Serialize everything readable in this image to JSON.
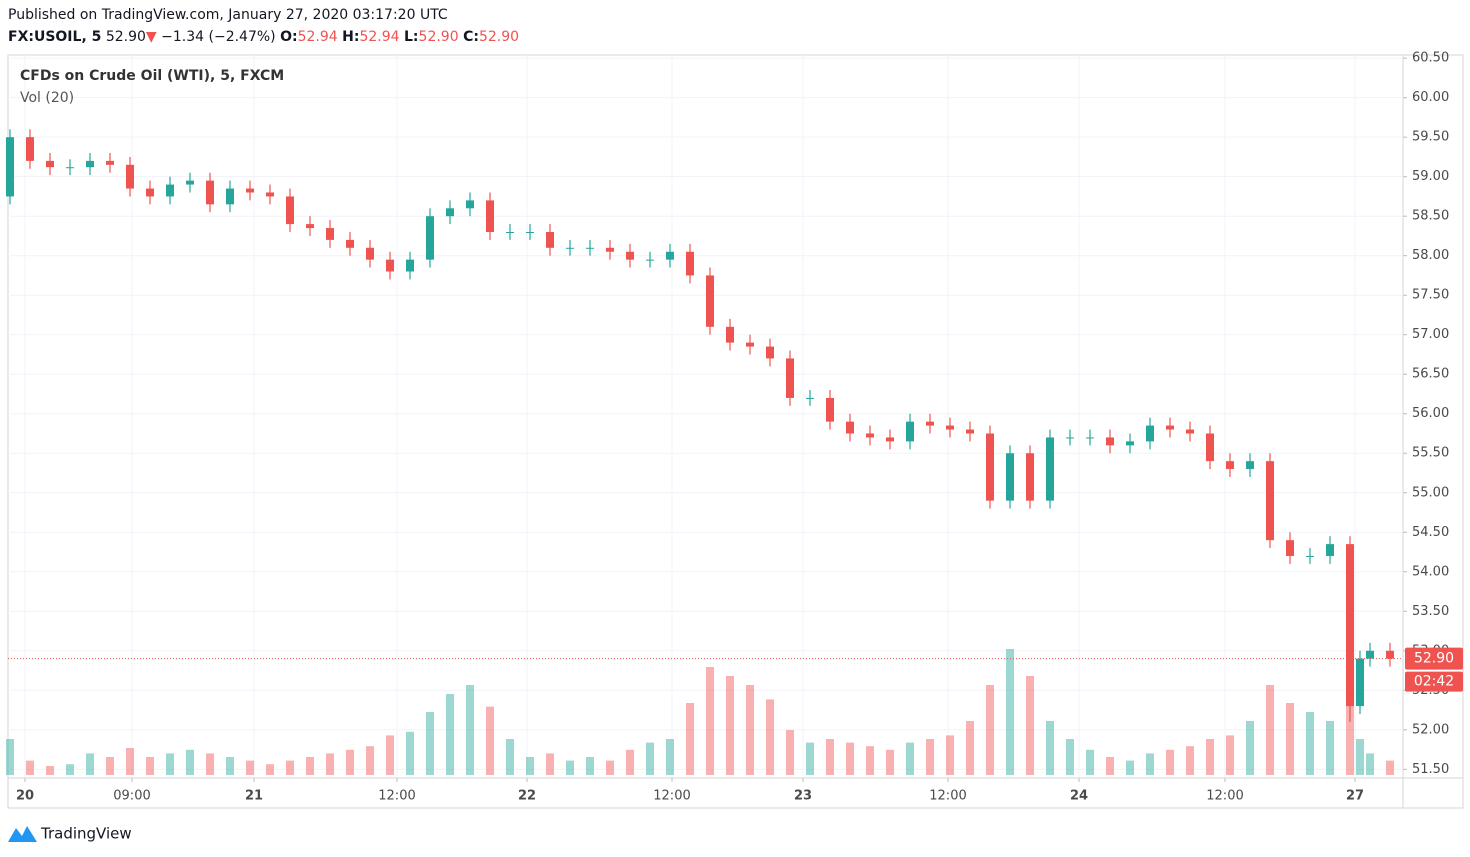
{
  "header": {
    "published": "Published on TradingView.com, January 27, 2020 03:17:20 UTC",
    "symbol": "FX:USOIL, 5",
    "last": "52.90",
    "arrow": "▼",
    "change": "−1.34 (−2.47%)",
    "o_label": "O:",
    "o": "52.94",
    "h_label": "H:",
    "h": "52.94",
    "l_label": "L:",
    "l": "52.90",
    "c_label": "C:",
    "c": "52.90"
  },
  "footer": {
    "brand": "TradingView"
  },
  "chart_data": {
    "type": "candlestick",
    "title": "CFDs on Crude Oil (WTI), 5, FXCM",
    "subtitle": "Vol (20)",
    "up_color": "#26a69a",
    "down_color": "#ef5350",
    "grid": true,
    "x": [
      2,
      22,
      42,
      62,
      82,
      102,
      122,
      142,
      162,
      182,
      202,
      222,
      242,
      262,
      282,
      302,
      322,
      342,
      362,
      382,
      402,
      422,
      442,
      462,
      482,
      502,
      522,
      542,
      562,
      582,
      602,
      622,
      642,
      662,
      682,
      702,
      722,
      742,
      762,
      782,
      802,
      822,
      842,
      862,
      882,
      902,
      922,
      942,
      962,
      982,
      1002,
      1022,
      1042,
      1062,
      1082,
      1102,
      1122,
      1142,
      1162,
      1182,
      1202,
      1222,
      1242,
      1262,
      1282,
      1302,
      1322,
      1342,
      1352,
      1362,
      1382
    ],
    "open": [
      58.75,
      59.5,
      59.2,
      59.12,
      59.12,
      59.2,
      59.15,
      58.85,
      58.75,
      58.9,
      58.95,
      58.65,
      58.85,
      58.8,
      58.75,
      58.4,
      58.35,
      58.2,
      58.1,
      57.95,
      57.8,
      57.95,
      58.5,
      58.6,
      58.7,
      58.3,
      58.3,
      58.3,
      58.1,
      58.1,
      58.1,
      58.05,
      57.95,
      57.95,
      58.05,
      57.75,
      57.1,
      56.9,
      56.85,
      56.7,
      56.2,
      56.2,
      55.9,
      55.75,
      55.7,
      55.65,
      55.9,
      55.85,
      55.8,
      55.75,
      54.9,
      55.5,
      54.9,
      55.7,
      55.7,
      55.7,
      55.6,
      55.65,
      55.85,
      55.8,
      55.75,
      55.4,
      55.3,
      55.4,
      54.4,
      54.2,
      54.2,
      54.35,
      52.3,
      52.9,
      53.0
    ],
    "high": [
      59.6,
      59.6,
      59.3,
      59.22,
      59.3,
      59.3,
      59.25,
      58.95,
      59.0,
      59.05,
      59.05,
      58.95,
      58.95,
      58.9,
      58.85,
      58.5,
      58.45,
      58.3,
      58.2,
      58.05,
      58.05,
      58.6,
      58.7,
      58.8,
      58.8,
      58.4,
      58.4,
      58.4,
      58.2,
      58.2,
      58.2,
      58.15,
      58.05,
      58.15,
      58.15,
      57.85,
      57.2,
      57.0,
      56.95,
      56.8,
      56.3,
      56.3,
      56.0,
      55.85,
      55.8,
      56.0,
      56.0,
      55.95,
      55.9,
      55.85,
      55.6,
      55.6,
      55.8,
      55.8,
      55.8,
      55.8,
      55.75,
      55.95,
      55.95,
      55.9,
      55.85,
      55.5,
      55.5,
      55.5,
      54.5,
      54.3,
      54.45,
      54.45,
      53.0,
      53.1,
      53.1
    ],
    "low": [
      58.65,
      59.1,
      59.02,
      59.02,
      59.02,
      59.05,
      58.75,
      58.65,
      58.65,
      58.8,
      58.55,
      58.55,
      58.7,
      58.65,
      58.3,
      58.25,
      58.1,
      58.0,
      57.85,
      57.7,
      57.7,
      57.85,
      58.4,
      58.5,
      58.2,
      58.2,
      58.2,
      58.0,
      58.0,
      58.0,
      57.95,
      57.85,
      57.85,
      57.85,
      57.65,
      57.0,
      56.8,
      56.75,
      56.6,
      56.1,
      56.1,
      55.8,
      55.65,
      55.6,
      55.55,
      55.55,
      55.75,
      55.7,
      55.65,
      54.8,
      54.8,
      54.8,
      54.8,
      55.6,
      55.6,
      55.5,
      55.5,
      55.55,
      55.7,
      55.65,
      55.3,
      55.2,
      55.2,
      54.3,
      54.1,
      54.1,
      54.1,
      52.1,
      52.2,
      52.8,
      52.8
    ],
    "close": [
      59.5,
      59.2,
      59.12,
      59.12,
      59.2,
      59.15,
      58.85,
      58.75,
      58.9,
      58.95,
      58.65,
      58.85,
      58.8,
      58.75,
      58.4,
      58.35,
      58.2,
      58.1,
      57.95,
      57.8,
      57.95,
      58.5,
      58.6,
      58.7,
      58.3,
      58.3,
      58.3,
      58.1,
      58.1,
      58.1,
      58.05,
      57.95,
      57.95,
      58.05,
      57.75,
      57.1,
      56.9,
      56.85,
      56.7,
      56.2,
      56.2,
      55.9,
      55.75,
      55.7,
      55.65,
      55.9,
      55.85,
      55.8,
      55.75,
      54.9,
      55.5,
      54.9,
      55.7,
      55.7,
      55.7,
      55.6,
      55.65,
      55.85,
      55.8,
      55.75,
      55.4,
      55.3,
      55.4,
      54.4,
      54.2,
      54.2,
      54.35,
      52.3,
      52.9,
      53.0,
      52.9
    ],
    "volume": [
      20,
      8,
      5,
      6,
      12,
      10,
      15,
      10,
      12,
      14,
      12,
      10,
      8,
      6,
      8,
      10,
      12,
      14,
      16,
      22,
      24,
      35,
      45,
      50,
      38,
      20,
      10,
      12,
      8,
      10,
      8,
      14,
      18,
      20,
      40,
      60,
      55,
      50,
      42,
      25,
      18,
      20,
      18,
      16,
      14,
      18,
      20,
      22,
      30,
      50,
      70,
      55,
      30,
      20,
      14,
      10,
      8,
      12,
      14,
      16,
      20,
      22,
      30,
      50,
      40,
      35,
      30,
      55,
      20,
      12,
      8
    ],
    "vol_max": 100,
    "xlim": [
      0,
      1395
    ],
    "xticks": [
      {
        "value": 17,
        "label": "20"
      },
      {
        "value": 124,
        "label": "09:00"
      },
      {
        "value": 246,
        "label": "21"
      },
      {
        "value": 389,
        "label": "12:00"
      },
      {
        "value": 519,
        "label": "22"
      },
      {
        "value": 664,
        "label": "12:00"
      },
      {
        "value": 795,
        "label": "23"
      },
      {
        "value": 940,
        "label": "12:00"
      },
      {
        "value": 1071,
        "label": "24"
      },
      {
        "value": 1217,
        "label": "12:00"
      },
      {
        "value": 1347,
        "label": "27"
      }
    ],
    "ylim": [
      51.39,
      60.54
    ],
    "yticks": [
      {
        "value": 51.5,
        "label": "51.50"
      },
      {
        "value": 52,
        "label": "52.00"
      },
      {
        "value": 52.5,
        "label": "52.50"
      },
      {
        "value": 53,
        "label": "53.00"
      },
      {
        "value": 53.5,
        "label": "53.50"
      },
      {
        "value": 54,
        "label": "54.00"
      },
      {
        "value": 54.5,
        "label": "54.50"
      },
      {
        "value": 55,
        "label": "55.00"
      },
      {
        "value": 55.5,
        "label": "55.50"
      },
      {
        "value": 56,
        "label": "56.00"
      },
      {
        "value": 56.5,
        "label": "56.50"
      },
      {
        "value": 57,
        "label": "57.00"
      },
      {
        "value": 57.5,
        "label": "57.50"
      },
      {
        "value": 58,
        "label": "58.00"
      },
      {
        "value": 58.5,
        "label": "58.50"
      },
      {
        "value": 59,
        "label": "59.00"
      },
      {
        "value": 59.5,
        "label": "59.50"
      },
      {
        "value": 60,
        "label": "60.00"
      },
      {
        "value": 60.5,
        "label": "60.50"
      }
    ],
    "last_price": {
      "value": 52.9,
      "label": "52.90"
    },
    "countdown": "02:42"
  }
}
